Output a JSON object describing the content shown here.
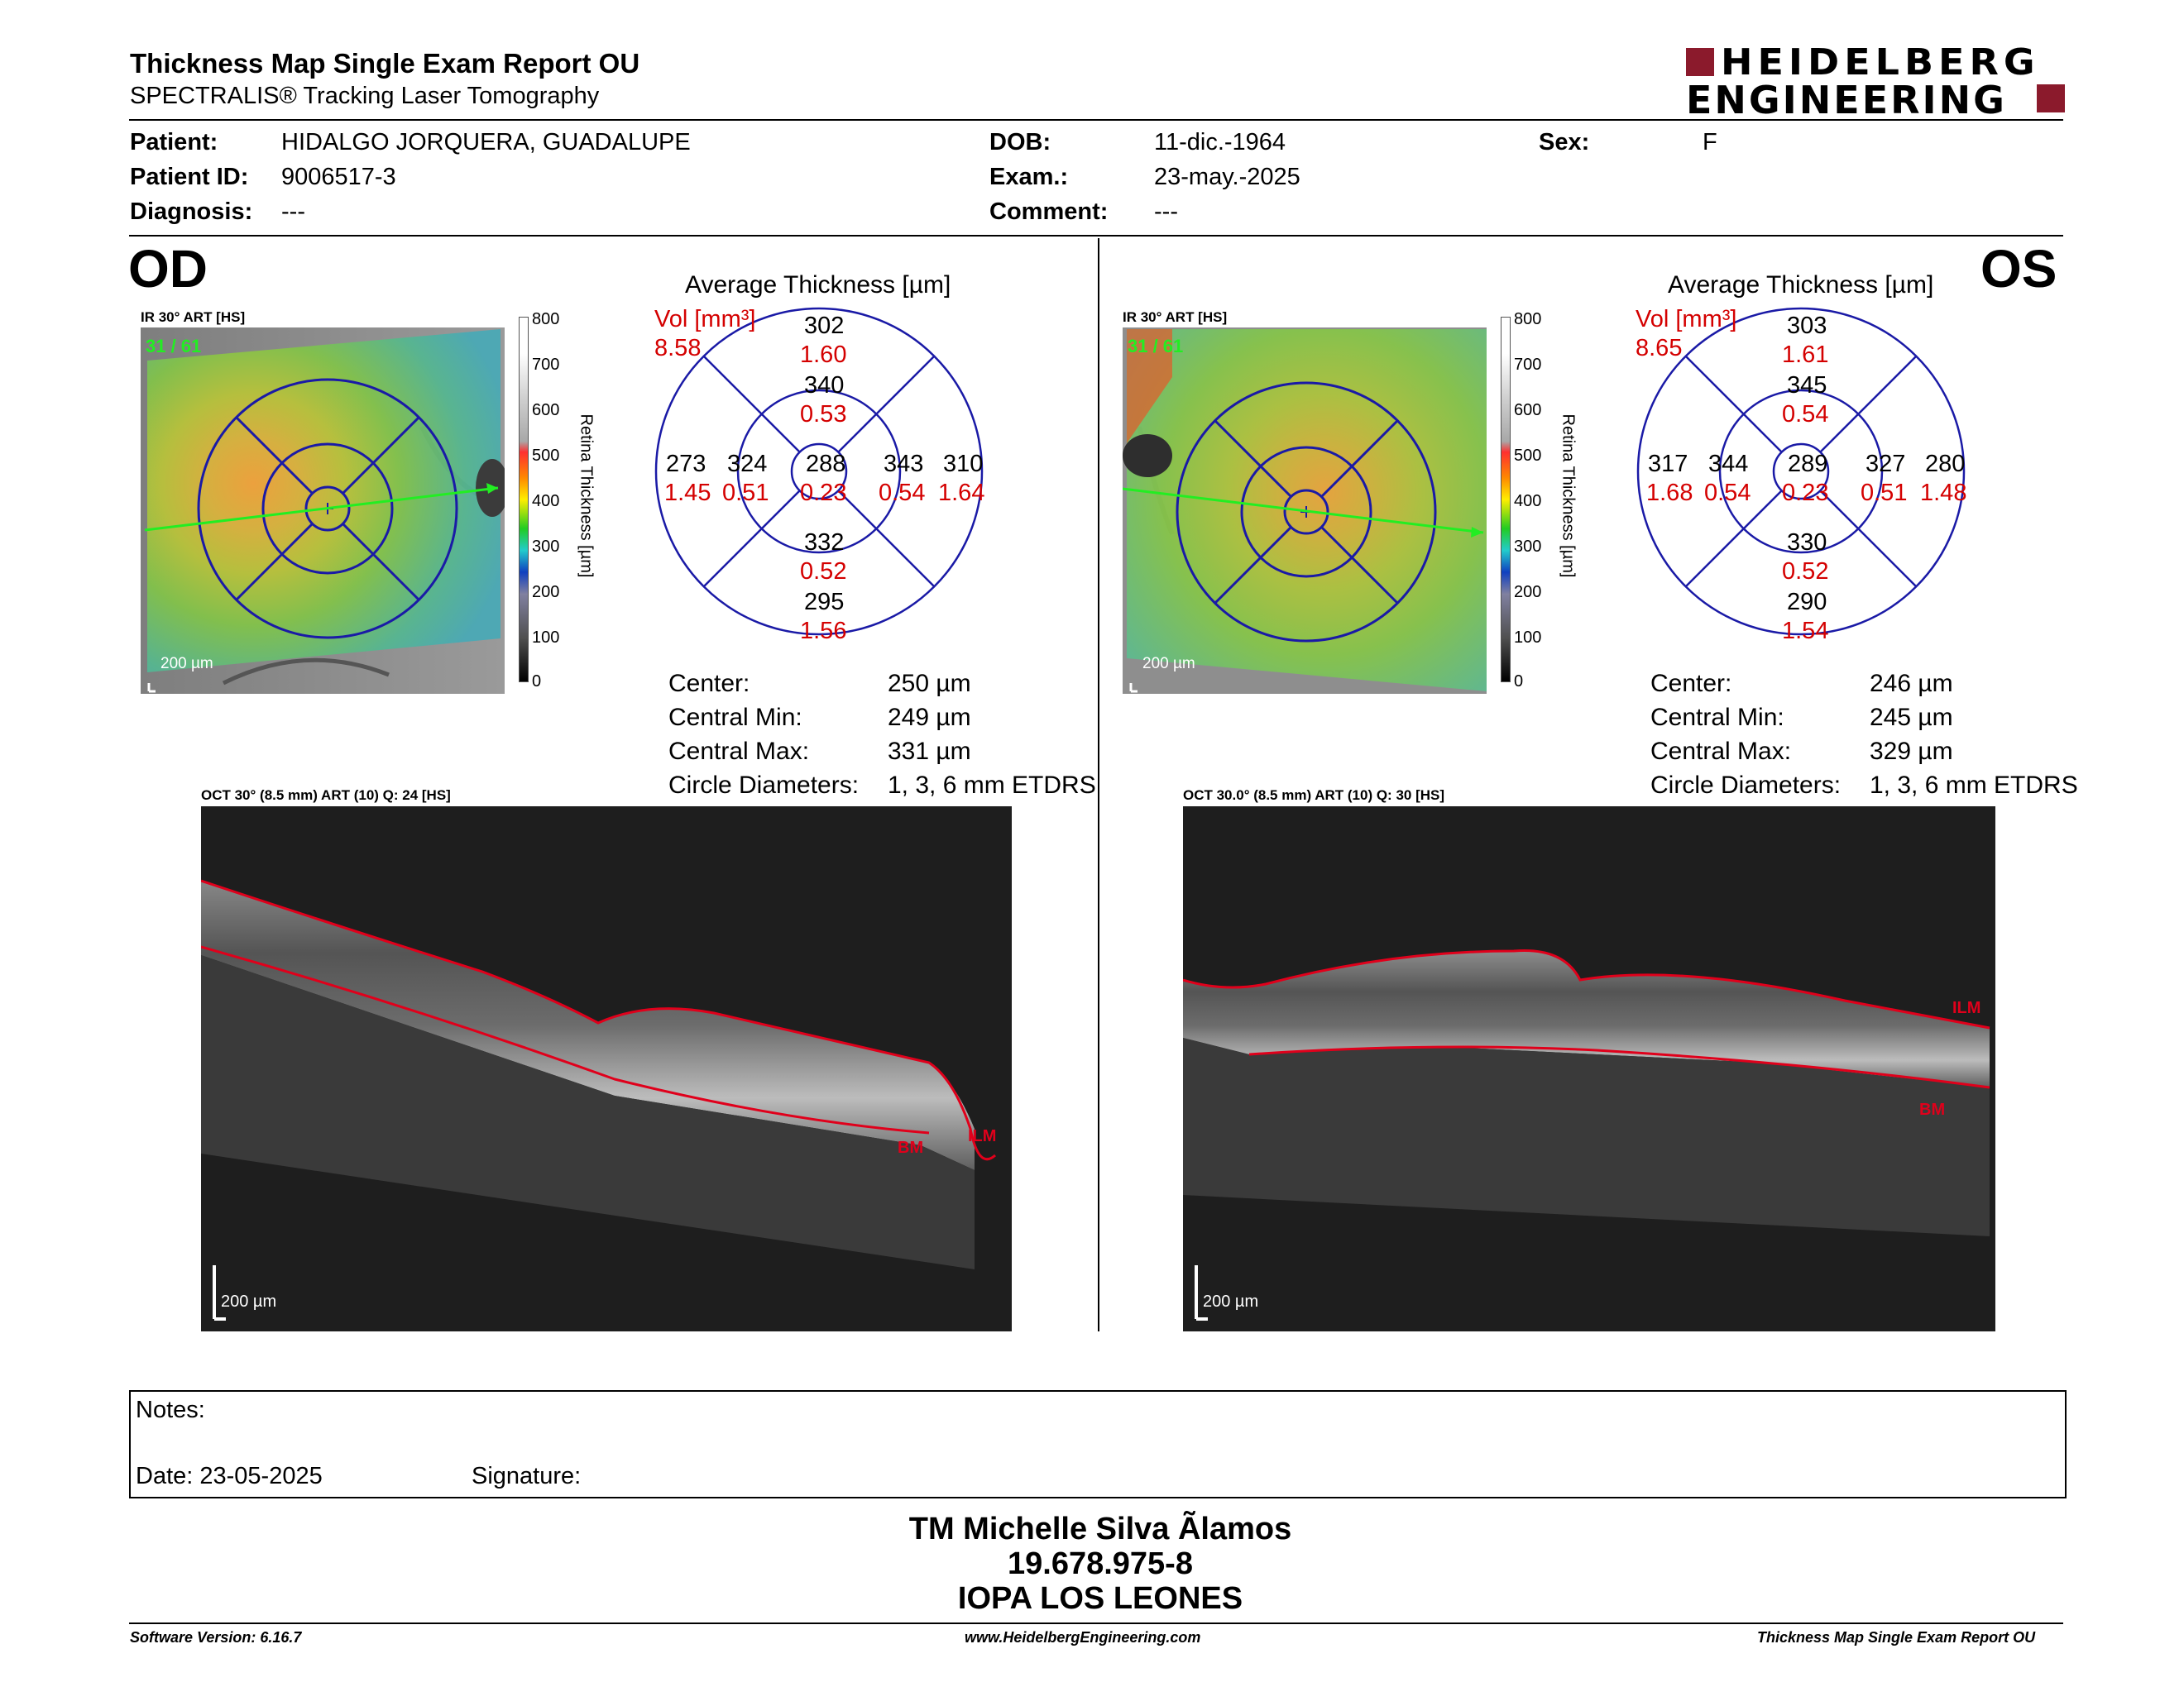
{
  "header": {
    "title": "Thickness Map Single Exam Report OU",
    "subtitle": "SPECTRALIS® Tracking Laser Tomography",
    "brand_line1": "HEIDELBERG",
    "brand_line2": "ENGINEERING",
    "brand_color": "#8b1a2c"
  },
  "patient": {
    "patient_label": "Patient:",
    "patient_value": "HIDALGO JORQUERA, GUADALUPE",
    "id_label": "Patient ID:",
    "id_value": "9006517-3",
    "diagnosis_label": "Diagnosis:",
    "diagnosis_value": "---",
    "dob_label": "DOB:",
    "dob_value": "11-dic.-1964",
    "exam_label": "Exam.:",
    "exam_value": "23-may.-2025",
    "comment_label": "Comment:",
    "comment_value": "---",
    "sex_label": "Sex:",
    "sex_value": "F"
  },
  "od": {
    "eye_label": "OD",
    "ir_label": "IR 30° ART [HS]",
    "frame_counter": "31 / 61",
    "ir_scale": "200 µm",
    "scale_ticks": [
      "800",
      "700",
      "600",
      "500",
      "400",
      "300",
      "200",
      "100",
      "0"
    ],
    "scale_title": "Retina  Thickness [µm]",
    "avg_title": "Average Thickness [µm]",
    "vol_label": "Vol [mm³]",
    "vol_value": "8.58",
    "sectors": {
      "outer_sup": [
        "302",
        "1.60"
      ],
      "inner_sup": [
        "340",
        "0.53"
      ],
      "outer_temp": [
        "273",
        "1.45"
      ],
      "inner_temp": [
        "324",
        "0.51"
      ],
      "center": [
        "288",
        "0.23"
      ],
      "inner_nasal": [
        "343",
        "0.54"
      ],
      "outer_nasal": [
        "310",
        "1.64"
      ],
      "inner_inf": [
        "332",
        "0.52"
      ],
      "outer_inf": [
        "295",
        "1.56"
      ]
    },
    "stats": [
      [
        "Center:",
        "250 µm"
      ],
      [
        "Central Min:",
        "249 µm"
      ],
      [
        "Central Max:",
        "331 µm"
      ],
      [
        "Circle Diameters:",
        "1, 3, 6 mm ETDRS"
      ]
    ],
    "oct_label": "OCT 30° (8.5 mm) ART (10) Q: 24 [HS]",
    "oct_scale": "200 µm",
    "ilm": "ILM",
    "bm": "BM"
  },
  "os": {
    "eye_label": "OS",
    "ir_label": "IR 30° ART [HS]",
    "frame_counter": "31 / 61",
    "ir_scale": "200 µm",
    "scale_ticks": [
      "800",
      "700",
      "600",
      "500",
      "400",
      "300",
      "200",
      "100",
      "0"
    ],
    "scale_title": "Retina  Thickness [µm]",
    "avg_title": "Average Thickness [µm]",
    "vol_label": "Vol [mm³]",
    "vol_value": "8.65",
    "sectors": {
      "outer_sup": [
        "303",
        "1.61"
      ],
      "inner_sup": [
        "345",
        "0.54"
      ],
      "outer_temp": [
        "317",
        "1.68"
      ],
      "inner_temp": [
        "344",
        "0.54"
      ],
      "center": [
        "289",
        "0.23"
      ],
      "inner_nasal": [
        "327",
        "0.51"
      ],
      "outer_nasal": [
        "280",
        "1.48"
      ],
      "inner_inf": [
        "330",
        "0.52"
      ],
      "outer_inf": [
        "290",
        "1.54"
      ]
    },
    "stats": [
      [
        "Center:",
        "246 µm"
      ],
      [
        "Central Min:",
        "245 µm"
      ],
      [
        "Central Max:",
        "329 µm"
      ],
      [
        "Circle Diameters:",
        "1, 3, 6 mm ETDRS"
      ]
    ],
    "oct_label": "OCT 30.0° (8.5 mm) ART (10) Q: 30 [HS]",
    "oct_scale": "200 µm",
    "ilm": "ILM",
    "bm": "BM"
  },
  "notes": {
    "notes_label": "Notes:",
    "date_label": "Date: 23-05-2025",
    "signature_label": "Signature:"
  },
  "footer": {
    "name": "TM Michelle Silva Ãlamos",
    "rut": "19.678.975-8",
    "clinic": "IOPA LOS LEONES",
    "software": "Software Version: 6.16.7",
    "website": "www.HeidelbergEngineering.com",
    "report_name": "Thickness Map Single Exam Report OU"
  },
  "colors": {
    "volume_red": "#d40000",
    "grid_blue": "#1a1aa6",
    "scan_green": "#22ee22"
  }
}
